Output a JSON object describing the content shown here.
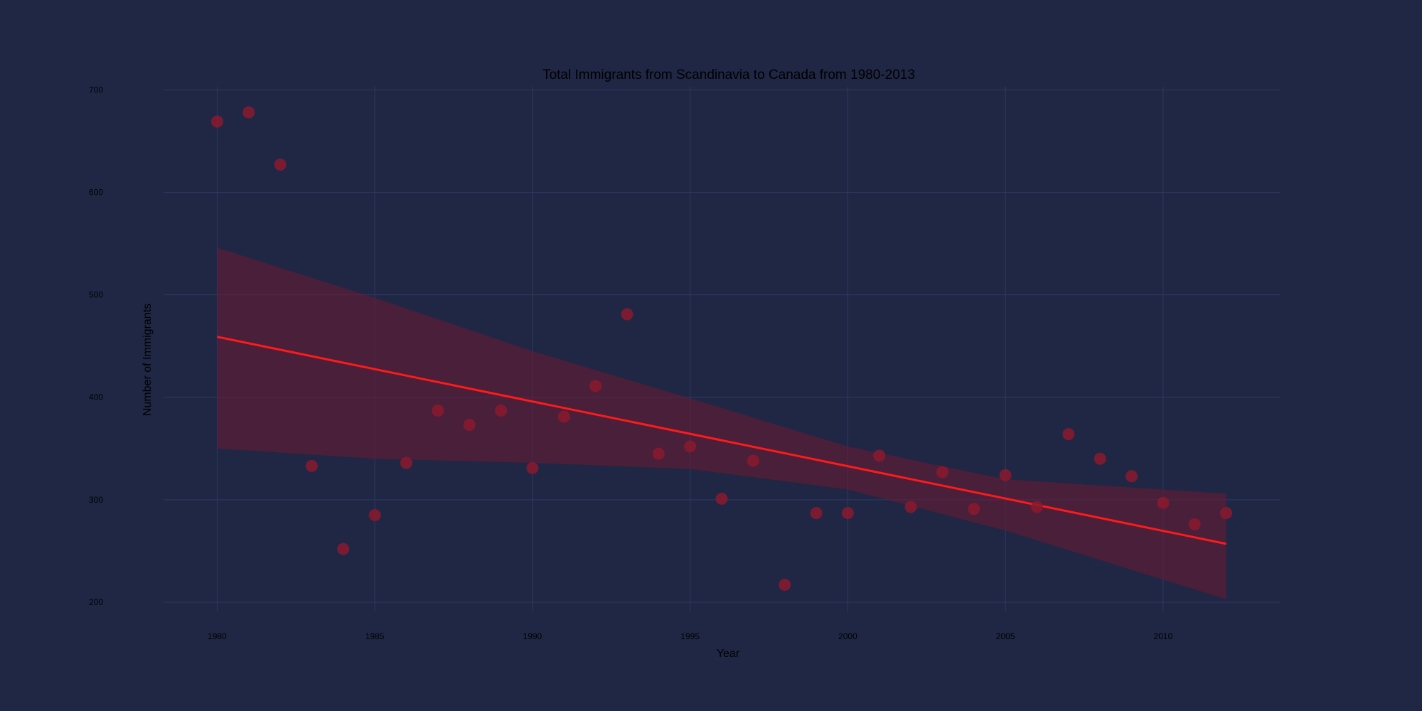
{
  "chart_data": {
    "type": "scatter",
    "title": "Total Immigrants from Scandinavia to Canada from 1980-2013",
    "xlabel": "Year",
    "ylabel": "Number of Immigrants",
    "xlim": [
      1978.3,
      2013.7
    ],
    "ylim": [
      191,
      703
    ],
    "xticks": [
      1980,
      1985,
      1990,
      1995,
      2000,
      2005,
      2010
    ],
    "yticks": [
      200,
      300,
      400,
      500,
      600,
      700
    ],
    "grid": true,
    "legend": "none",
    "points": {
      "x": [
        1980,
        1981,
        1982,
        1983,
        1984,
        1985,
        1986,
        1987,
        1988,
        1989,
        1990,
        1991,
        1992,
        1993,
        1994,
        1995,
        1996,
        1997,
        1998,
        1999,
        2000,
        2001,
        2002,
        2003,
        2004,
        2005,
        2006,
        2007,
        2008,
        2009,
        2010,
        2011,
        2012
      ],
      "y": [
        669,
        678,
        627,
        333,
        252,
        285,
        336,
        387,
        373,
        387,
        331,
        381,
        411,
        481,
        345,
        352,
        301,
        338,
        217,
        287,
        287,
        343,
        293,
        327,
        291,
        324,
        293,
        364,
        340,
        323,
        297,
        276,
        287
      ],
      "color": "#8b1a2e"
    },
    "regression": {
      "x": [
        1980,
        2012
      ],
      "y": [
        459,
        257
      ],
      "color": "#ff1a1a"
    },
    "confidence_band": {
      "x": [
        1980,
        1985,
        1990,
        1995,
        2000,
        2005,
        2010,
        2012
      ],
      "upper": [
        546,
        497,
        445,
        399,
        352,
        320,
        310,
        306
      ],
      "lower": [
        350,
        340,
        336,
        330,
        310,
        270,
        222,
        203
      ],
      "color": "#6b1a33"
    }
  }
}
